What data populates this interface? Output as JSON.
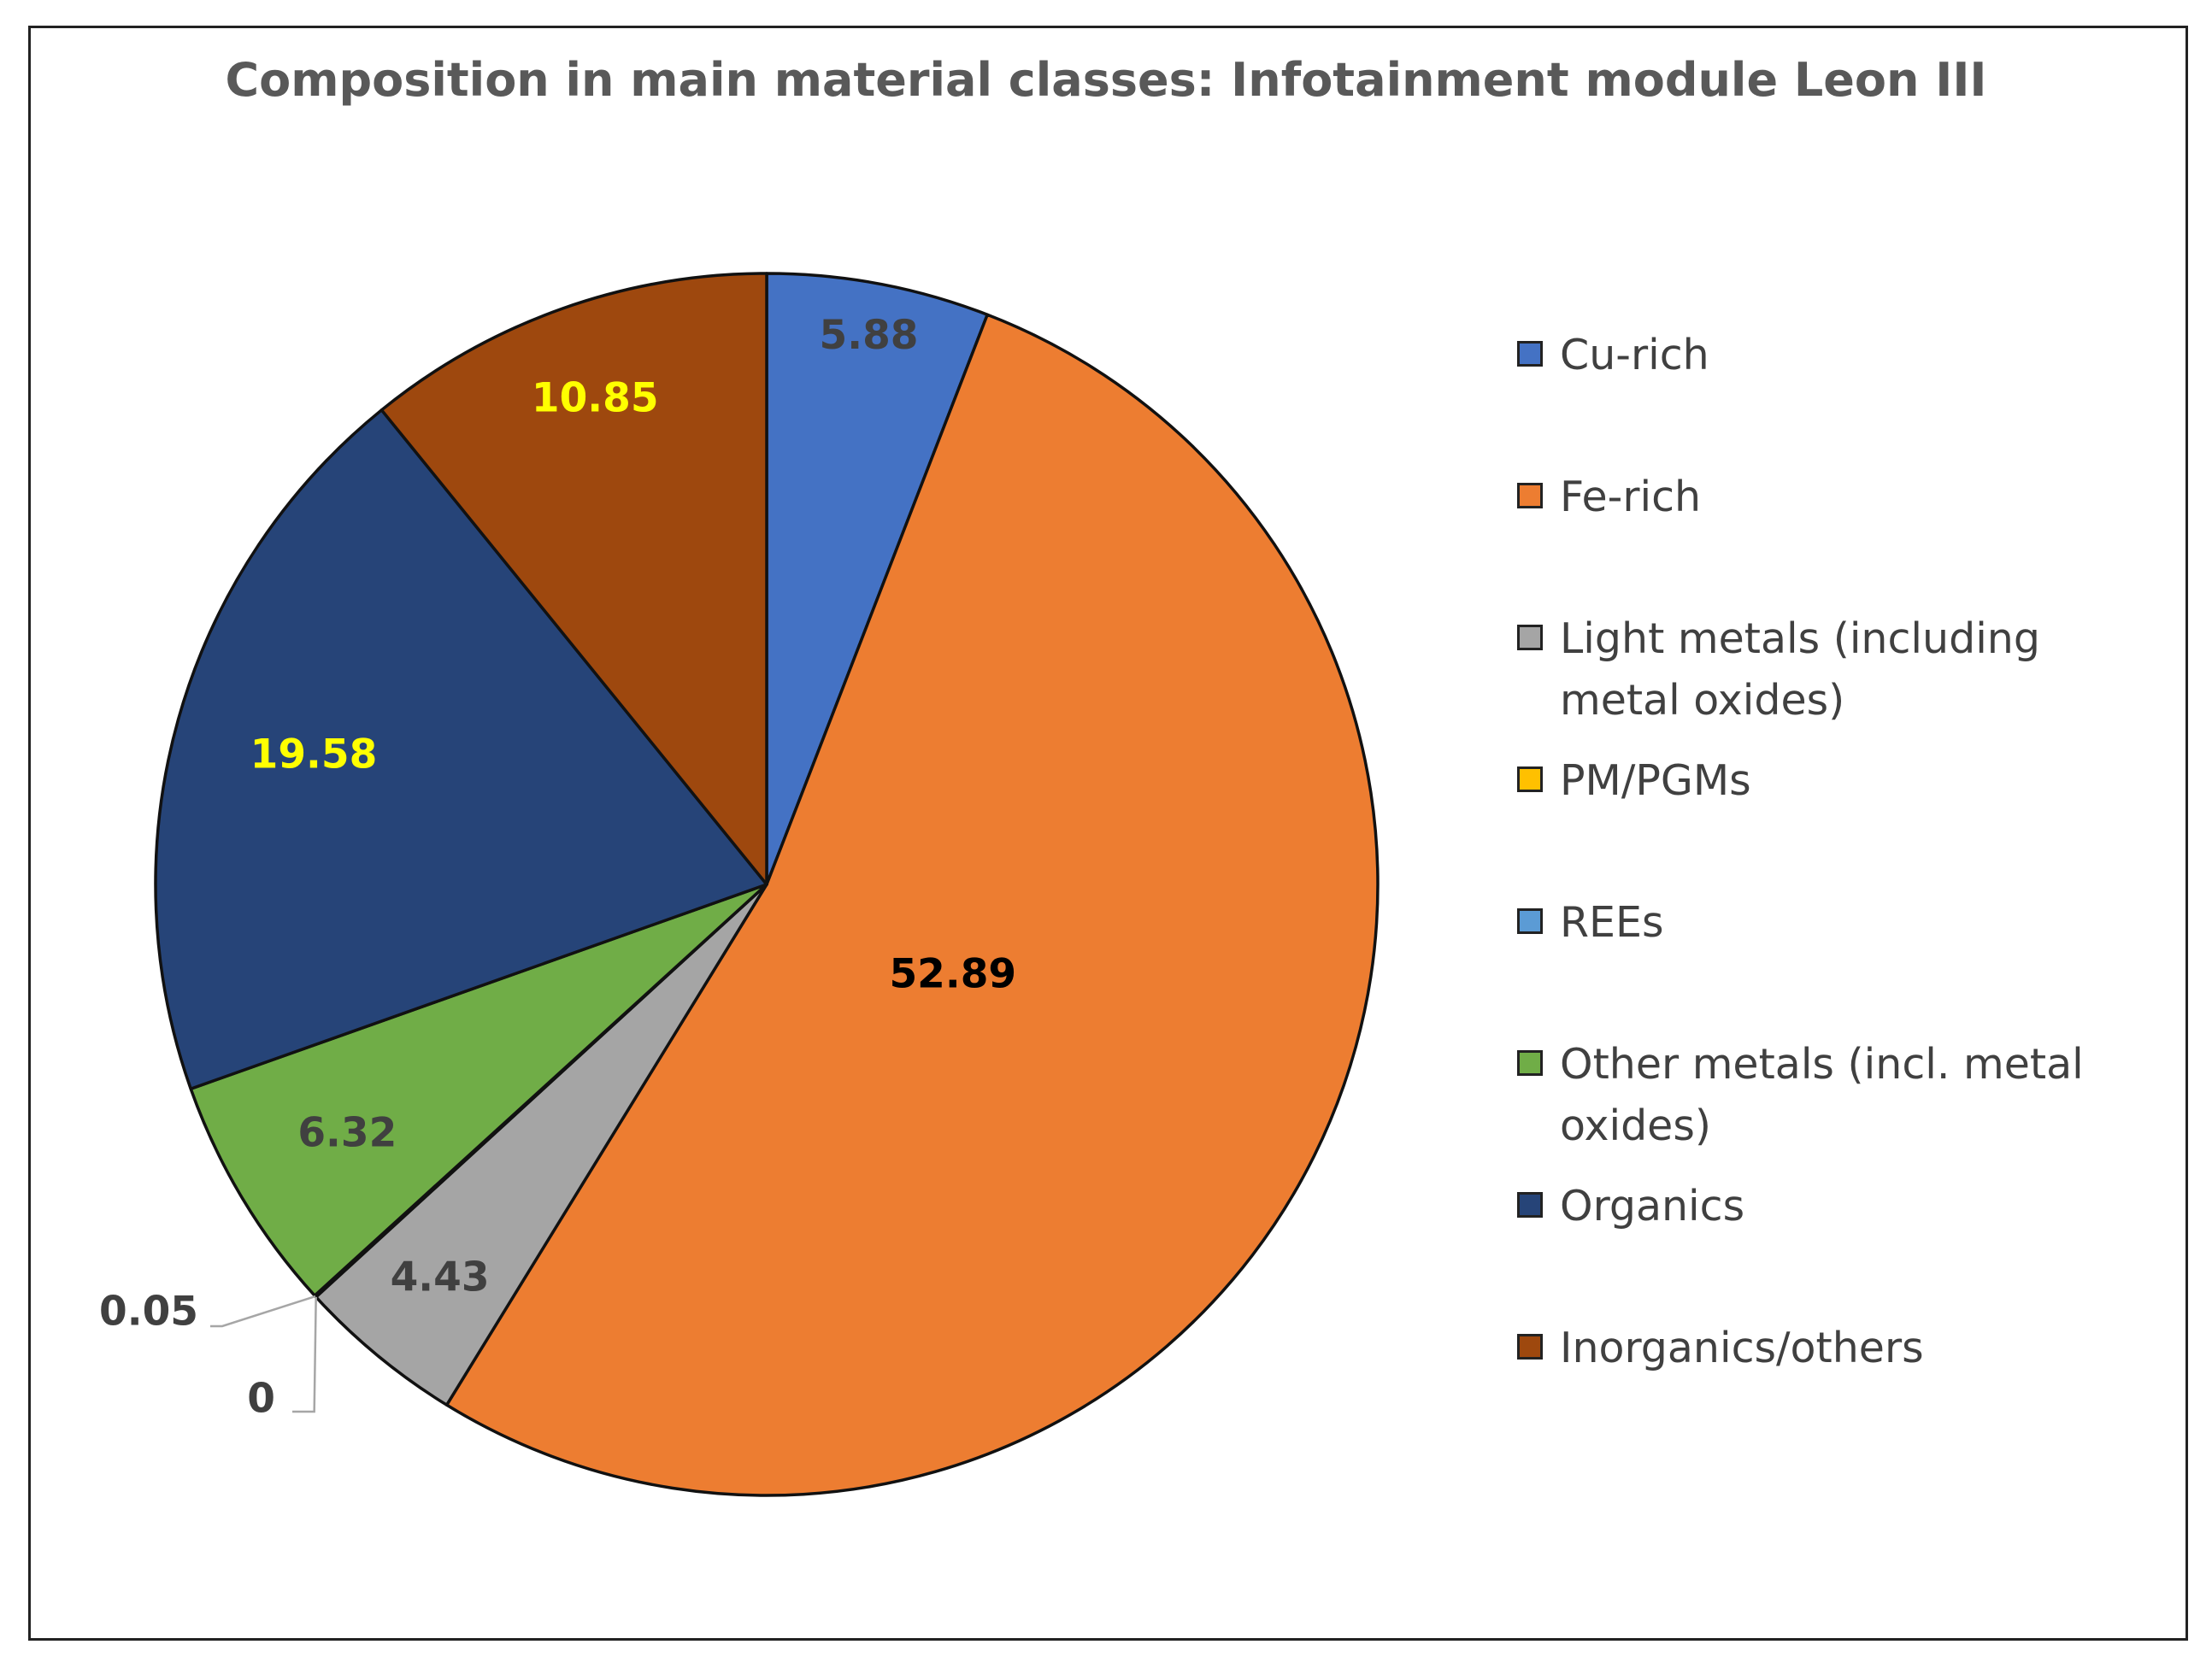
{
  "chart_data": {
    "type": "pie",
    "title": "Composition in main material classes: Infotainment module Leon III",
    "legend_position": "right",
    "slices": [
      {
        "label": "Cu-rich",
        "value": 5.88,
        "value_text": "5.88",
        "color": "#4472C4",
        "label_color": "#404040"
      },
      {
        "label": "Fe-rich",
        "value": 52.89,
        "value_text": "52.89",
        "color": "#ED7D31",
        "label_color": "#000000"
      },
      {
        "label": "Light metals (including metal oxides)",
        "value": 4.43,
        "value_text": "4.43",
        "color": "#A5A5A5",
        "label_color": "#404040"
      },
      {
        "label": "PM/PGMs",
        "value": 0,
        "value_text": "0",
        "color": "#FFC000",
        "label_color": "#404040"
      },
      {
        "label": "REEs",
        "value": 0.05,
        "value_text": "0.05",
        "color": "#5B9BD5",
        "label_color": "#404040"
      },
      {
        "label": "Other metals (incl. metal oxides)",
        "value": 6.32,
        "value_text": "6.32",
        "color": "#70AD47",
        "label_color": "#404040"
      },
      {
        "label": "Organics",
        "value": 19.58,
        "value_text": "19.58",
        "color": "#264478",
        "label_color": "#FFFF00"
      },
      {
        "label": "Inorganics/others",
        "value": 10.85,
        "value_text": "10.85",
        "color": "#9E480E",
        "label_color": "#FFFF00"
      }
    ]
  }
}
